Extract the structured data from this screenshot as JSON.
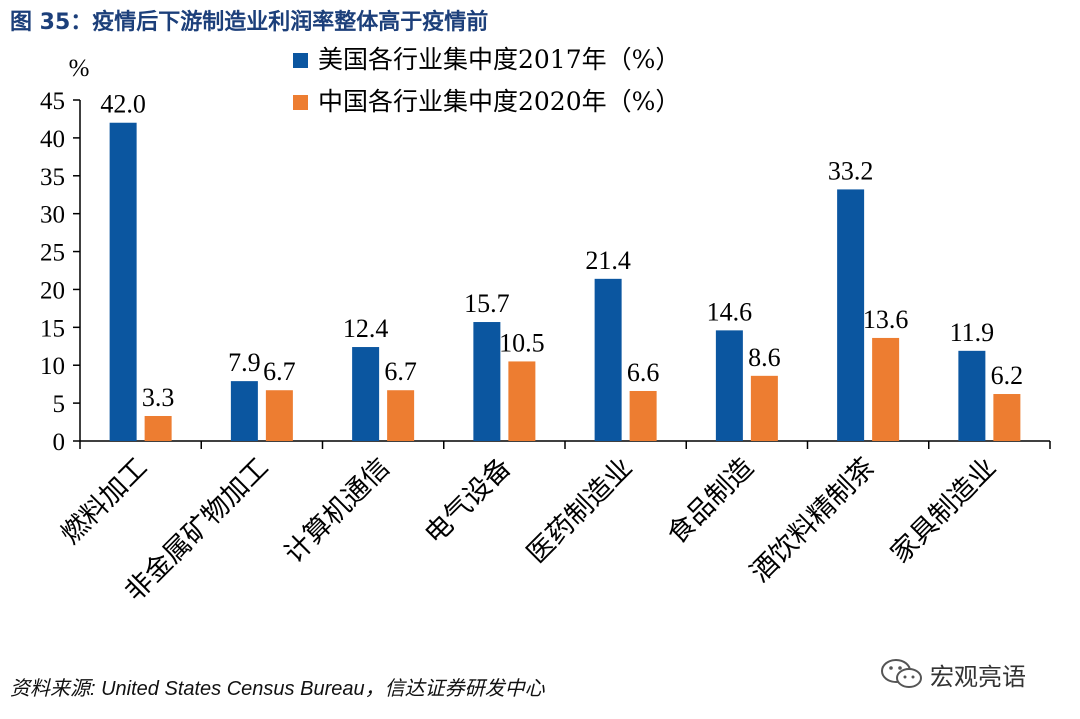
{
  "figure": {
    "title": "图  35：疫情后下游制造业利润率整体高于疫情前",
    "source": "资料来源: United States Census Bureau，信达证券研发中心"
  },
  "watermark": {
    "text": "宏观亮语",
    "icon": "wechat-icon"
  },
  "colors": {
    "series_us": "#0b56a0",
    "series_cn": "#ed7d31",
    "title": "#1c3f7a"
  },
  "chart_data": {
    "type": "bar",
    "ylabel": "%",
    "ylim": [
      0,
      45
    ],
    "yticks": [
      0,
      5,
      10,
      15,
      20,
      25,
      30,
      35,
      40,
      45
    ],
    "grid": false,
    "legend_position": "top-right",
    "categories": [
      "燃料加工",
      "非金属矿物加工",
      "计算机通信",
      "电气设备",
      "医药制造业",
      "食品制造",
      "酒饮料精制茶",
      "家具制造业"
    ],
    "series": [
      {
        "name": "美国各行业集中度2017年（%）",
        "values": [
          42.0,
          7.9,
          12.4,
          15.7,
          21.4,
          14.6,
          33.2,
          11.9
        ],
        "color": "#0b56a0"
      },
      {
        "name": "中国各行业集中度2020年（%）",
        "values": [
          3.3,
          6.7,
          6.7,
          10.5,
          6.6,
          8.6,
          13.6,
          6.2
        ],
        "color": "#ed7d31"
      }
    ]
  }
}
